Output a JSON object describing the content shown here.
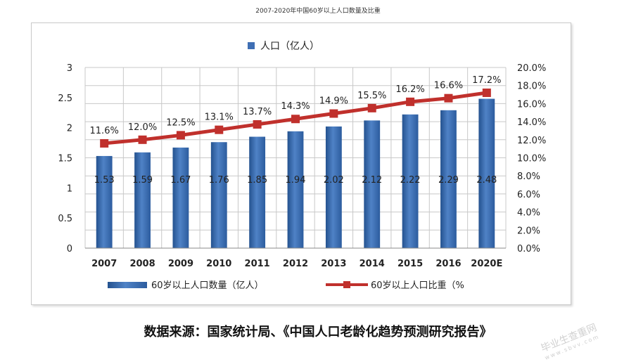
{
  "page_title": "2007-2020年中国60岁以上人口数量及比重",
  "source_note": "数据来源：国家统计局、《中国人口老龄化趋势预测研究报告》",
  "watermark": {
    "main": "毕业生查重网",
    "sub": "www.sbvv.com"
  },
  "chart_data": {
    "type": "bar+line",
    "title": "",
    "top_legend": "人口（亿人）",
    "categories": [
      "2007",
      "2008",
      "2009",
      "2010",
      "2011",
      "2012",
      "2013",
      "2014",
      "2015",
      "2016",
      "2020E"
    ],
    "series": [
      {
        "name": "60岁以上人口数量（亿人）",
        "type": "bar",
        "axis": "left",
        "values": [
          1.53,
          1.59,
          1.67,
          1.76,
          1.85,
          1.94,
          2.02,
          2.12,
          2.22,
          2.29,
          2.48
        ],
        "labels": [
          "1.53",
          "1.59",
          "1.67",
          "1.76",
          "1.85",
          "1.94",
          "2.02",
          "2.12",
          "2.22",
          "2.29",
          "2.48"
        ]
      },
      {
        "name": "60岁以上人口比重（%",
        "type": "line",
        "axis": "right",
        "values": [
          11.6,
          12.0,
          12.5,
          13.1,
          13.7,
          14.3,
          14.9,
          15.5,
          16.2,
          16.6,
          17.2
        ],
        "labels": [
          "11.6%",
          "12.0%",
          "12.5%",
          "13.1%",
          "13.7%",
          "14.3%",
          "14.9%",
          "15.5%",
          "16.2%",
          "16.6%",
          "17.2%"
        ]
      }
    ],
    "y_left": {
      "min": 0,
      "max": 3,
      "ticks": [
        "0",
        "0.5",
        "1",
        "1.5",
        "2",
        "2.5",
        "3"
      ]
    },
    "y_right": {
      "min": 0,
      "max": 20,
      "ticks": [
        "0.0%",
        "2.0%",
        "4.0%",
        "6.0%",
        "8.0%",
        "10.0%",
        "12.0%",
        "14.0%",
        "16.0%",
        "18.0%",
        "20.0%"
      ]
    },
    "grid": true,
    "legend_position": "bottom",
    "colors": {
      "bar": "#3f6fb4",
      "bar_dark": "#24528f",
      "line": "#c0302c",
      "grid": "#c8c8c8"
    }
  }
}
